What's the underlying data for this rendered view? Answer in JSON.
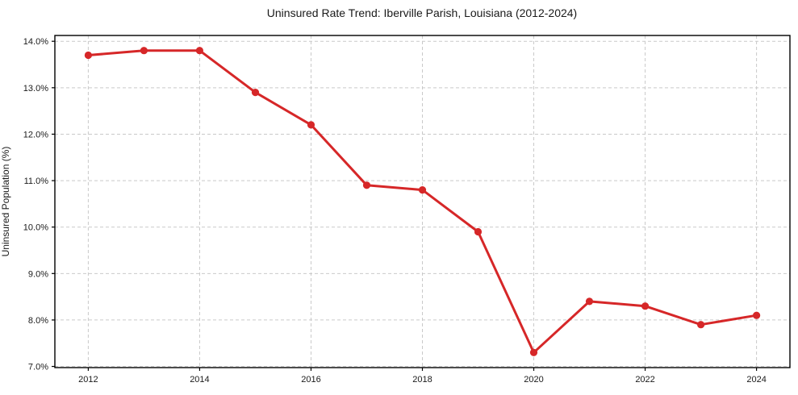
{
  "chart_data": {
    "type": "line",
    "title": "Uninsured Rate Trend: Iberville Parish, Louisiana (2012-2024)",
    "xlabel": "",
    "ylabel": "Uninsured Population (%)",
    "x": [
      2012,
      2013,
      2014,
      2015,
      2016,
      2017,
      2018,
      2019,
      2020,
      2021,
      2022,
      2023,
      2024
    ],
    "values": [
      13.7,
      13.8,
      13.8,
      12.9,
      12.2,
      10.9,
      10.8,
      9.9,
      7.3,
      8.4,
      8.3,
      7.9,
      8.1
    ],
    "xticks": [
      2012,
      2014,
      2016,
      2018,
      2020,
      2022,
      2024
    ],
    "xtick_labels": [
      "2012",
      "2014",
      "2016",
      "2018",
      "2020",
      "2022",
      "2024"
    ],
    "yticks": [
      7,
      8,
      9,
      10,
      11,
      12,
      13,
      14
    ],
    "ytick_labels": [
      "7.0%",
      "8.0%",
      "9.0%",
      "10.0%",
      "11.0%",
      "12.0%",
      "13.0%",
      "14.0%"
    ],
    "xlim": [
      2011.4,
      2024.6
    ],
    "ylim": [
      6.975,
      14.125
    ],
    "grid": true,
    "legend_position": "none",
    "colors": {
      "line": "#d62728",
      "marker": "#d62728",
      "grid": "#c9c9c9",
      "spine": "#000000",
      "text": "#1a1a1a",
      "background": "#ffffff"
    }
  }
}
